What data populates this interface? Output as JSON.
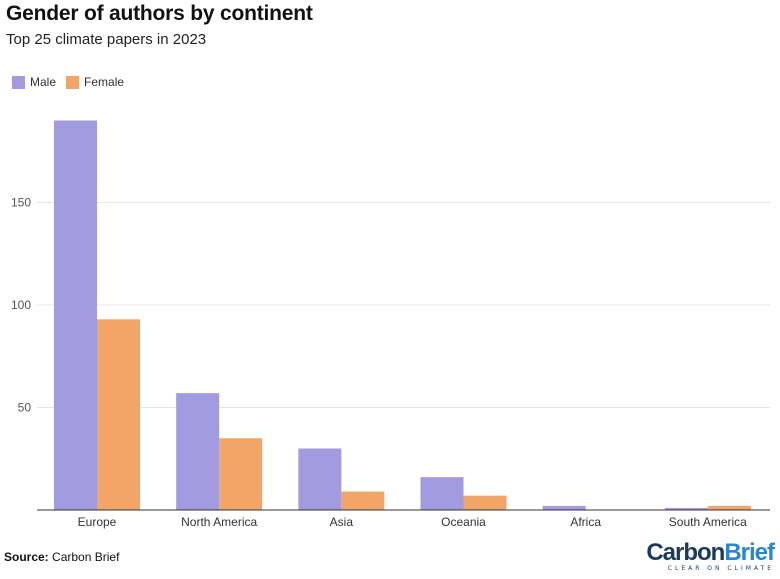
{
  "header": {
    "title": "Gender of authors by continent",
    "subtitle": "Top 25 climate papers in 2023"
  },
  "legend": {
    "items": [
      {
        "label": "Male",
        "color": "#a29bdf"
      },
      {
        "label": "Female",
        "color": "#f2a566"
      }
    ]
  },
  "footer": {
    "source_label": "Source:",
    "source_value": "Carbon Brief",
    "logo_word_1": "Carbon",
    "logo_word_2": "Brief",
    "logo_tagline": "CLEAR ON CLIMATE"
  },
  "chart_data": {
    "type": "bar",
    "title": "Gender of authors by continent",
    "subtitle": "Top 25 climate papers in 2023",
    "xlabel": "",
    "ylabel": "",
    "categories": [
      "Europe",
      "North America",
      "Asia",
      "Oceania",
      "Africa",
      "South America"
    ],
    "series": [
      {
        "name": "Male",
        "color": "#a29bdf",
        "values": [
          190,
          57,
          30,
          16,
          2,
          1
        ]
      },
      {
        "name": "Female",
        "color": "#f2a566",
        "values": [
          93,
          35,
          9,
          7,
          0,
          2
        ]
      }
    ],
    "yticks": [
      50,
      100,
      150
    ],
    "ylim": [
      0,
      200
    ],
    "grid": true,
    "legend_position": "top-left"
  }
}
